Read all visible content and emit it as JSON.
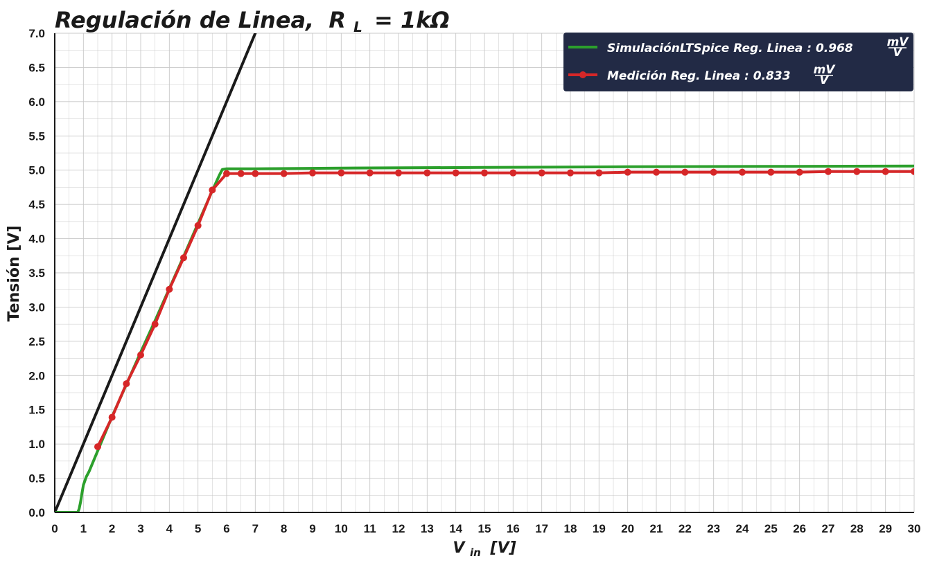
{
  "chart_data": {
    "type": "line",
    "title": "Regulación de Linea, R_L = 1kΩ",
    "title_parts": {
      "main": "Regulación de Linea,",
      "r": "R",
      "r_sub": "L",
      "eq": "= 1kΩ"
    },
    "xlabel_parts": {
      "v": "V",
      "sub": "in",
      "unit": "[V]"
    },
    "ylabel": "Tensión [V]",
    "xlim": [
      0,
      30
    ],
    "ylim": [
      0,
      7.0
    ],
    "x_ticks": [
      "0",
      "1",
      "2",
      "3",
      "4",
      "5",
      "6",
      "7",
      "8",
      "9",
      "10",
      "11",
      "12",
      "13",
      "14",
      "15",
      "16",
      "17",
      "18",
      "19",
      "20",
      "21",
      "22",
      "23",
      "24",
      "25",
      "26",
      "27",
      "28",
      "29",
      "30"
    ],
    "y_ticks": [
      "0.0",
      "0.5",
      "1.0",
      "1.5",
      "2.0",
      "2.5",
      "3.0",
      "3.5",
      "4.0",
      "4.5",
      "5.0",
      "5.5",
      "6.0",
      "6.5",
      "7.0"
    ],
    "grid": true,
    "legend_position": "top-right",
    "series": [
      {
        "name": "SimulaciónLTSpice Reg.Linea: 0.968 mV/V",
        "legend_main": "SimulaciónLTSpice Reg. Linea :  0.968",
        "legend_num": "mV",
        "legend_den": "V",
        "color": "#2ca02c",
        "marker": false,
        "x": [
          0,
          0.8,
          0.85,
          0.9,
          0.95,
          1.0,
          1.1,
          1.2,
          1.5,
          2.0,
          2.5,
          3.0,
          3.5,
          4.0,
          4.5,
          5.0,
          5.5,
          5.75,
          5.85,
          6.0,
          7,
          10,
          15,
          20,
          25,
          30
        ],
        "y": [
          0,
          0,
          0.05,
          0.15,
          0.28,
          0.4,
          0.52,
          0.6,
          0.9,
          1.4,
          1.87,
          2.34,
          2.8,
          3.27,
          3.74,
          4.22,
          4.7,
          4.93,
          5.01,
          5.02,
          5.02,
          5.03,
          5.04,
          5.05,
          5.055,
          5.06
        ]
      },
      {
        "name": "Medición Reg.Linea: 0.833 mV/V",
        "legend_main": "Medición Reg. Linea :  0.833",
        "legend_num": "mV",
        "legend_den": "V",
        "color": "#d62728",
        "marker": true,
        "x": [
          1.5,
          2,
          2.5,
          3,
          3.5,
          4,
          4.5,
          5,
          5.5,
          6,
          6.5,
          7,
          8,
          9,
          10,
          11,
          12,
          13,
          14,
          15,
          16,
          17,
          18,
          19,
          20,
          21,
          22,
          23,
          24,
          25,
          26,
          27,
          28,
          29,
          30
        ],
        "y": [
          0.96,
          1.39,
          1.88,
          2.3,
          2.75,
          3.26,
          3.72,
          4.19,
          4.71,
          4.95,
          4.95,
          4.95,
          4.95,
          4.96,
          4.96,
          4.96,
          4.96,
          4.96,
          4.96,
          4.96,
          4.96,
          4.96,
          4.96,
          4.96,
          4.97,
          4.97,
          4.97,
          4.97,
          4.97,
          4.97,
          4.97,
          4.98,
          4.98,
          4.98,
          4.98
        ]
      },
      {
        "color": "#1a1a1a",
        "marker": false,
        "x": [
          0,
          7
        ],
        "y": [
          0,
          7
        ]
      }
    ]
  },
  "colors": {
    "legend_bg": "#222a45",
    "grid": "#c8c8c8",
    "axis": "#1a1a1a"
  }
}
